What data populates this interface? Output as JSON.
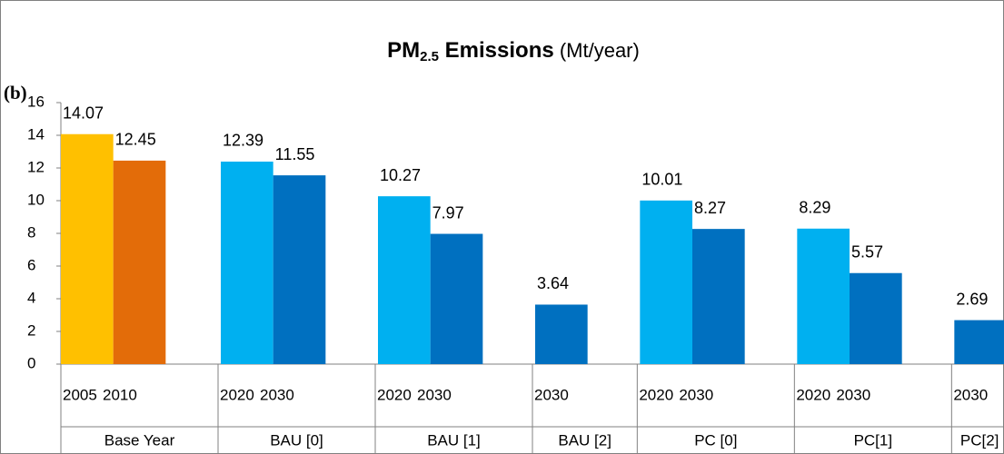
{
  "chart_data": {
    "type": "bar",
    "panel_label": "(b)",
    "title": {
      "main": "PM",
      "subscript": "2.5",
      "bold": " Emissions",
      "unit": " (Mt/year)"
    },
    "ylim": [
      0,
      16
    ],
    "yticks": [
      0,
      2,
      4,
      6,
      8,
      10,
      12,
      14,
      16
    ],
    "groups": [
      {
        "name": "Base Year",
        "categories": [
          "2005",
          "2010"
        ],
        "values": [
          14.07,
          12.45
        ],
        "colors": [
          "#ffc000",
          "#e36c09"
        ]
      },
      {
        "name": "BAU [0]",
        "categories": [
          "2020",
          "2030"
        ],
        "values": [
          12.39,
          11.55
        ],
        "colors": [
          "#00b0f0",
          "#0070c0"
        ]
      },
      {
        "name": "BAU [1]",
        "categories": [
          "2020",
          "2030"
        ],
        "values": [
          10.27,
          7.97
        ],
        "colors": [
          "#00b0f0",
          "#0070c0"
        ]
      },
      {
        "name": "BAU [2]",
        "categories": [
          "2030"
        ],
        "values": [
          3.64
        ],
        "colors": [
          "#0070c0"
        ]
      },
      {
        "name": "PC [0]",
        "categories": [
          "2020",
          "2030"
        ],
        "values": [
          10.01,
          8.27
        ],
        "colors": [
          "#00b0f0",
          "#0070c0"
        ]
      },
      {
        "name": "PC[1]",
        "categories": [
          "2020",
          "2030"
        ],
        "values": [
          8.29,
          5.57
        ],
        "colors": [
          "#00b0f0",
          "#0070c0"
        ]
      },
      {
        "name": "PC[2]",
        "categories": [
          "2030"
        ],
        "values": [
          2.69
        ],
        "colors": [
          "#0070c0"
        ]
      }
    ]
  }
}
